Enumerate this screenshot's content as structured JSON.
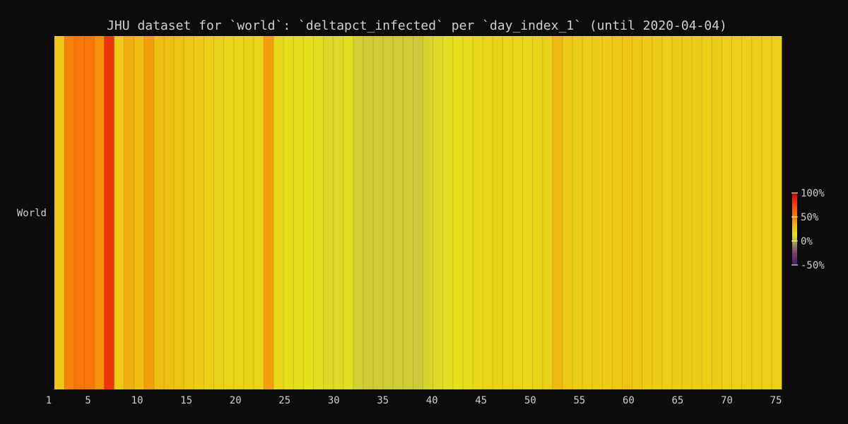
{
  "chart_data": {
    "type": "heatmap",
    "title": "JHU dataset for `world`: `deltapct_infected` per `day_index_1` (until 2020-04-04)",
    "xlabel": "",
    "ylabel": "",
    "row_labels": [
      "World"
    ],
    "x_ticks": [
      1,
      5,
      10,
      15,
      20,
      25,
      30,
      35,
      40,
      45,
      50,
      55,
      60,
      65,
      70,
      75
    ],
    "xlim": [
      1,
      75
    ],
    "grid": false,
    "x": [
      1,
      2,
      3,
      4,
      5,
      6,
      7,
      8,
      9,
      10,
      11,
      12,
      13,
      14,
      15,
      16,
      17,
      18,
      19,
      20,
      21,
      22,
      23,
      24,
      25,
      26,
      27,
      28,
      29,
      30,
      31,
      32,
      33,
      34,
      35,
      36,
      37,
      38,
      39,
      40,
      41,
      42,
      43,
      44,
      45,
      46,
      47,
      48,
      49,
      50,
      51,
      52,
      53,
      54,
      55,
      56,
      57,
      58,
      59,
      60,
      61,
      62,
      63,
      64,
      65,
      66,
      67,
      68,
      69,
      70,
      71,
      72,
      73
    ],
    "values": [
      25,
      50,
      55,
      55,
      45,
      80,
      25,
      35,
      30,
      40,
      30,
      30,
      28,
      26,
      24,
      22,
      22,
      20,
      20,
      20,
      20,
      40,
      18,
      16,
      16,
      14,
      12,
      10,
      10,
      12,
      6,
      5,
      5,
      5,
      5,
      5,
      4,
      8,
      10,
      12,
      14,
      16,
      18,
      20,
      20,
      20,
      20,
      18,
      20,
      22,
      32,
      26,
      24,
      24,
      24,
      24,
      26,
      28,
      26,
      24,
      24,
      24,
      24,
      24,
      24,
      24,
      24,
      22,
      22,
      22,
      22,
      22,
      22
    ],
    "colorbar": {
      "min": -50,
      "max": 100,
      "ticks": [
        {
          "value": 100,
          "label": "100%"
        },
        {
          "value": 50,
          "label": "50%"
        },
        {
          "value": 0,
          "label": "0%"
        },
        {
          "value": -50,
          "label": "-50%"
        }
      ]
    }
  }
}
